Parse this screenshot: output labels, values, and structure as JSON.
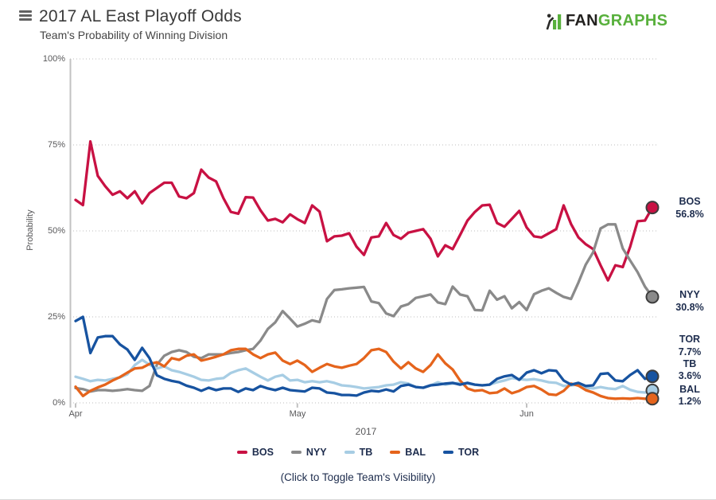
{
  "logo": {
    "fan": "FAN",
    "graphs": "GRAPHS",
    "fan_color": "#23211f",
    "graphs_color": "#58b03c",
    "icon_green": "#58b03c",
    "icon_dark": "#2a2a28"
  },
  "chart_data": {
    "type": "line",
    "title": "2017 AL East Playoff Odds",
    "subtitle": "Team's Probability of Winning Division",
    "ylabel": "Probability",
    "year_label": "2017",
    "caption": "(Click to Toggle Team's Visibility)",
    "ylim": [
      0,
      100
    ],
    "grid": "horizontal-dotted",
    "legend_position": "bottom",
    "x_range_days": 78,
    "y_ticks": [
      {
        "pct": 0,
        "label": "0%"
      },
      {
        "pct": 25,
        "label": "25%"
      },
      {
        "pct": 50,
        "label": "50%"
      },
      {
        "pct": 75,
        "label": "75%"
      },
      {
        "pct": 100,
        "label": "100%"
      }
    ],
    "x_ticks": [
      {
        "day": 0,
        "label": "Apr"
      },
      {
        "day": 30,
        "label": "May"
      },
      {
        "day": 61,
        "label": "Jun"
      }
    ],
    "series": [
      {
        "name": "BOS",
        "color": "#c81143",
        "final_label": "56.8%",
        "values": [
          59,
          57.5,
          76,
          66,
          63,
          60.5,
          61.5,
          59.5,
          61.5,
          58,
          61,
          62.5,
          64,
          64,
          60,
          59.5,
          61,
          67.8,
          65.5,
          64.4,
          59.5,
          55.5,
          55,
          59.8,
          59.7,
          56,
          53,
          53.5,
          52.5,
          54.8,
          53.4,
          52.3,
          57.4,
          55.6,
          47,
          48.4,
          48.6,
          49.3,
          45.4,
          43,
          48.1,
          48.4,
          52.3,
          48.8,
          47.7,
          49.5,
          50,
          50.5,
          47.7,
          42.6,
          45.8,
          44.7,
          48.8,
          53,
          55.5,
          57.4,
          57.6,
          52.3,
          51.2,
          53.5,
          55.8,
          51,
          48.4,
          48.1,
          49.3,
          50.5,
          57.4,
          52,
          48.1,
          46.1,
          44.7,
          40,
          35.6,
          40,
          39.5,
          45.4,
          52.8,
          53,
          56.8
        ]
      },
      {
        "name": "NYY",
        "color": "#8a8a8a",
        "final_label": "30.8%",
        "values": [
          4.3,
          4,
          3.3,
          3.7,
          3.7,
          3.5,
          3.7,
          4,
          3.7,
          3.5,
          4.9,
          11.1,
          13.7,
          14.8,
          15.3,
          14.8,
          13.4,
          13,
          14.1,
          14.1,
          14.1,
          14.5,
          14.8,
          15.3,
          15.7,
          18.1,
          21.5,
          23.4,
          26.7,
          24.5,
          22.2,
          23,
          24,
          23.5,
          30.2,
          32.8,
          33,
          33.3,
          33.5,
          33.7,
          29.5,
          29,
          26,
          25.2,
          28,
          28.7,
          30.5,
          31,
          31.5,
          29.2,
          28.7,
          33.8,
          31.5,
          31,
          27,
          26.9,
          32.6,
          30,
          31,
          27.5,
          29.3,
          27,
          31.6,
          32.6,
          33.3,
          32,
          30.8,
          30.2,
          35,
          40.2,
          43.8,
          50.7,
          51.9,
          51.9,
          44.9,
          41.4,
          38,
          33.8,
          30.8
        ]
      },
      {
        "name": "TB",
        "color": "#a7cde4",
        "final_label": "3.6%",
        "values": [
          7.6,
          7,
          6.3,
          6.7,
          6.5,
          7,
          7.4,
          8.3,
          11,
          12.5,
          11.1,
          10,
          10.6,
          9.5,
          9,
          8.3,
          7.6,
          6.7,
          6.5,
          7,
          7.2,
          8.7,
          9.5,
          10,
          8.8,
          7.6,
          6.5,
          7.6,
          8.1,
          6.5,
          6.7,
          6,
          6.3,
          6,
          6.3,
          5.8,
          5.1,
          4.9,
          4.6,
          4.2,
          4.4,
          4.6,
          5.1,
          5.3,
          6,
          5.6,
          4.6,
          4.4,
          5.1,
          6,
          5.3,
          5.6,
          5.8,
          5.6,
          5.3,
          5.1,
          5.3,
          6,
          6.5,
          7.2,
          6.9,
          6.7,
          6.9,
          6.5,
          6,
          5.8,
          4.9,
          5.1,
          5.3,
          4.4,
          4.2,
          4.6,
          4.2,
          4,
          4.9,
          3.8,
          3.2,
          3,
          3.6
        ]
      },
      {
        "name": "BAL",
        "color": "#e5641c",
        "final_label": "1.2%",
        "values": [
          4.7,
          2,
          3.5,
          4.5,
          5.3,
          6.5,
          7.5,
          8.8,
          10,
          10.2,
          11.3,
          11.8,
          10.6,
          13,
          12.5,
          13.7,
          14.1,
          12.3,
          12.8,
          13.4,
          14.1,
          15.3,
          15.7,
          15.7,
          14.1,
          13,
          14.1,
          14.6,
          12.3,
          11.3,
          12.3,
          11,
          9,
          10.2,
          11.3,
          10.6,
          10.2,
          10.8,
          11.3,
          13,
          15.3,
          15.7,
          14.8,
          12,
          10,
          11.8,
          10,
          9,
          11,
          14.1,
          11.5,
          9.7,
          6.5,
          4.2,
          3.5,
          3.7,
          2.8,
          3,
          4.2,
          2.8,
          3.5,
          4.6,
          4.9,
          3.9,
          2.5,
          2.3,
          3.5,
          5.6,
          5,
          3.7,
          3,
          2,
          1.4,
          1.2,
          1.3,
          1.2,
          1.4,
          1.2,
          1.2
        ]
      },
      {
        "name": "TOR",
        "color": "#1753a0",
        "final_label": "7.7%",
        "values": [
          23.8,
          25,
          14.5,
          19,
          19.4,
          19.4,
          17,
          15.5,
          12.5,
          16,
          13,
          8,
          7,
          6.4,
          6,
          5,
          4.4,
          3.5,
          4.4,
          3.7,
          4.2,
          4.2,
          3.2,
          4.2,
          3.7,
          4.9,
          4.2,
          3.7,
          4.4,
          3.7,
          3.5,
          3.3,
          4.4,
          4.2,
          3,
          2.8,
          2.3,
          2.3,
          2.1,
          3,
          3.5,
          3.3,
          3.9,
          3.3,
          4.9,
          5.3,
          4.6,
          4.4,
          5.1,
          5.3,
          5.6,
          5.8,
          5.3,
          5.8,
          5.3,
          5.1,
          5.3,
          7,
          7.7,
          8.1,
          6.7,
          8.8,
          9.5,
          8.6,
          9.5,
          9.3,
          6.5,
          5.3,
          5.8,
          4.9,
          5.1,
          8.4,
          8.6,
          6.5,
          6.3,
          8.1,
          9.5,
          7,
          7.7
        ]
      }
    ]
  }
}
